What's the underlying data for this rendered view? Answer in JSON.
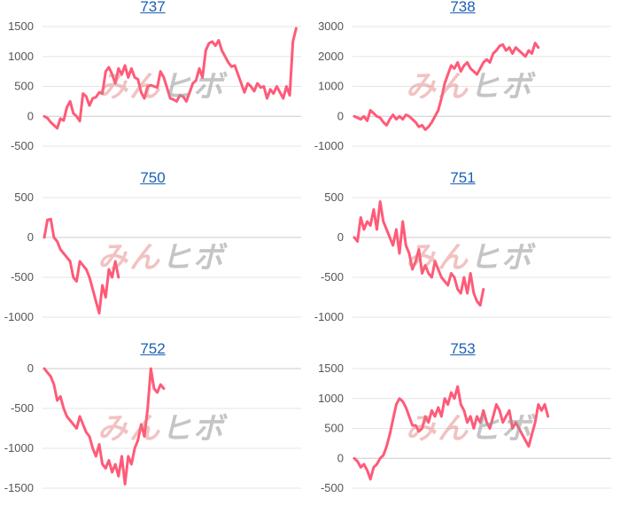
{
  "watermark": {
    "part1": "みん",
    "part2": "ヒボ"
  },
  "colors": {
    "series": "#ff5a78",
    "title_link": "#1a5fb4"
  },
  "chart_data": [
    {
      "type": "line",
      "title": "737",
      "ylim": [
        -500,
        1500
      ],
      "yticks": [
        1500,
        1000,
        500,
        0,
        -500
      ],
      "grid": true,
      "values": [
        0,
        -30,
        -100,
        -150,
        -200,
        -40,
        -70,
        150,
        250,
        50,
        0,
        -80,
        380,
        330,
        180,
        300,
        320,
        400,
        380,
        750,
        820,
        700,
        550,
        800,
        700,
        850,
        650,
        800,
        650,
        620,
        400,
        300,
        500,
        520,
        500,
        480,
        750,
        650,
        480,
        300,
        280,
        250,
        350,
        330,
        250,
        400,
        550,
        600,
        800,
        650,
        1100,
        1220,
        1250,
        1180,
        1270,
        1100,
        1000,
        900,
        830,
        850,
        700,
        550,
        400,
        550,
        500,
        420,
        550,
        480,
        500,
        300,
        450,
        380,
        500,
        400,
        300,
        500,
        350,
        1250,
        1470
      ]
    },
    {
      "type": "line",
      "title": "738",
      "ylim": [
        -1000,
        3000
      ],
      "yticks": [
        3000,
        2000,
        1000,
        0,
        -1000
      ],
      "grid": true,
      "values": [
        0,
        -50,
        -100,
        0,
        -150,
        200,
        100,
        0,
        -50,
        -200,
        -300,
        -100,
        50,
        -100,
        0,
        -100,
        50,
        0,
        -100,
        -200,
        -350,
        -300,
        -450,
        -350,
        -200,
        0,
        200,
        600,
        1100,
        1400,
        1700,
        1600,
        1800,
        1500,
        1700,
        1800,
        1600,
        1500,
        1400,
        1600,
        1800,
        1900,
        1800,
        2100,
        2200,
        2350,
        2400,
        2200,
        2300,
        2100,
        2300,
        2200,
        2100,
        2000,
        2200,
        2100,
        2450,
        2300
      ]
    },
    {
      "type": "line",
      "title": "750",
      "ylim": [
        -1000,
        500
      ],
      "yticks": [
        500,
        0,
        -500,
        -1000
      ],
      "grid": true,
      "values": [
        0,
        220,
        230,
        0,
        -50,
        -150,
        -200,
        -250,
        -300,
        -500,
        -550,
        -300,
        -350,
        -400,
        -500,
        -650,
        -800,
        -950,
        -600,
        -750,
        -400,
        -500,
        -300,
        -500
      ]
    },
    {
      "type": "line",
      "title": "751",
      "ylim": [
        -1000,
        500
      ],
      "yticks": [
        500,
        0,
        -500,
        -1000
      ],
      "grid": true,
      "values": [
        0,
        -50,
        250,
        100,
        200,
        150,
        350,
        100,
        450,
        200,
        100,
        0,
        -100,
        100,
        -200,
        200,
        -100,
        -200,
        -400,
        -300,
        -150,
        -450,
        -350,
        -450,
        -500,
        -300,
        -400,
        -500,
        -550,
        -600,
        -450,
        -500,
        -650,
        -700,
        -500,
        -700,
        -450,
        -700,
        -800,
        -850,
        -650
      ]
    },
    {
      "type": "line",
      "title": "752",
      "ylim": [
        -1500,
        0
      ],
      "yticks": [
        0,
        -500,
        -1000,
        -1500
      ],
      "grid": true,
      "values": [
        0,
        -50,
        -100,
        -200,
        -400,
        -350,
        -500,
        -600,
        -650,
        -700,
        -750,
        -600,
        -700,
        -800,
        -850,
        -1000,
        -1100,
        -950,
        -1200,
        -1250,
        -1150,
        -1300,
        -1200,
        -1350,
        -1100,
        -1450,
        -1100,
        -1200,
        -1000,
        -900,
        -700,
        -850,
        -500,
        0,
        -250,
        -300,
        -200,
        -250
      ]
    },
    {
      "type": "line",
      "title": "753",
      "ylim": [
        -500,
        1500
      ],
      "yticks": [
        1500,
        1000,
        500,
        0,
        -500
      ],
      "grid": true,
      "values": [
        0,
        -50,
        -150,
        -100,
        -200,
        -350,
        -150,
        -100,
        0,
        50,
        200,
        400,
        650,
        900,
        1000,
        950,
        850,
        700,
        550,
        550,
        450,
        500,
        700,
        600,
        800,
        700,
        850,
        700,
        1000,
        900,
        1100,
        1000,
        1200,
        900,
        800,
        600,
        700,
        500,
        700,
        600,
        800,
        600,
        500,
        700,
        900,
        800,
        600,
        700,
        800,
        500,
        600,
        500,
        400,
        300,
        200,
        400,
        600,
        900,
        800,
        900,
        700
      ]
    }
  ]
}
